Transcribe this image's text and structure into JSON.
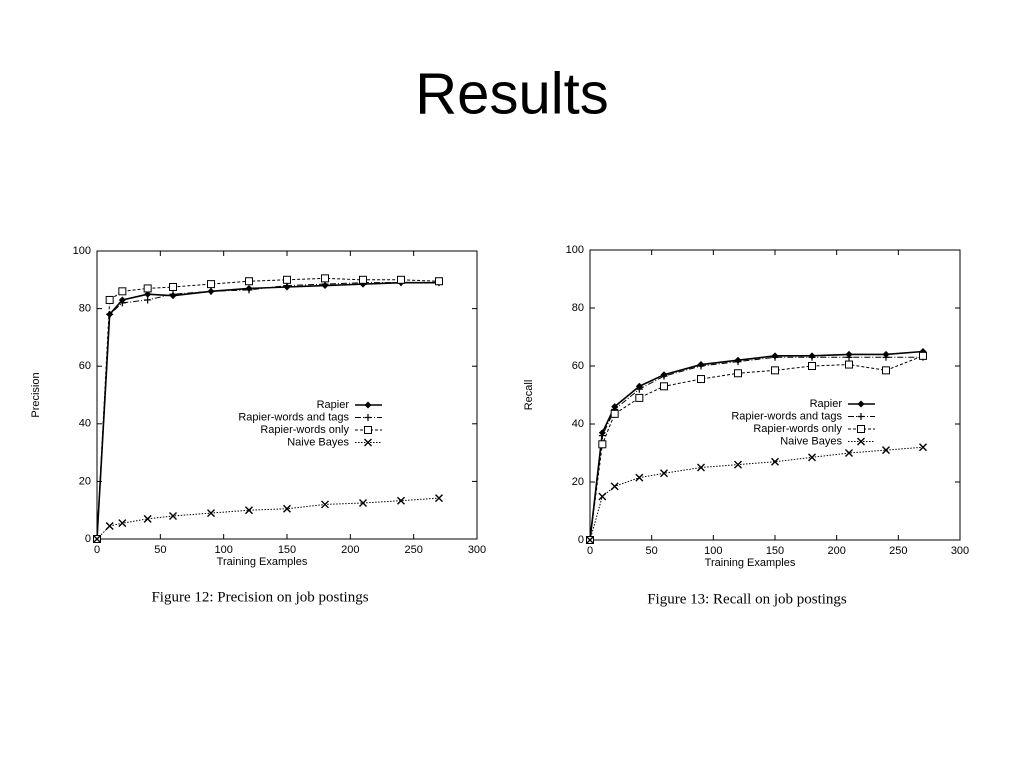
{
  "slide": {
    "title": "Results"
  },
  "chart_data": [
    {
      "type": "line",
      "caption": "Figure 12: Precision on job postings",
      "xlabel": "Training Examples",
      "ylabel": "Precision",
      "x": [
        0,
        10,
        20,
        40,
        60,
        90,
        120,
        150,
        180,
        210,
        240,
        270
      ],
      "xlim": [
        0,
        300
      ],
      "xticks": [
        0,
        50,
        100,
        150,
        200,
        250,
        300
      ],
      "ylim": [
        0,
        100
      ],
      "yticks": [
        0,
        20,
        40,
        60,
        80,
        100
      ],
      "legend": "right",
      "series": [
        {
          "name": "Rapier",
          "color": "#000000",
          "marker": "diamond",
          "values": [
            0,
            78,
            83,
            85,
            84.5,
            86,
            87,
            87.5,
            88,
            88.5,
            89,
            89
          ]
        },
        {
          "name": "Rapier-words and tags",
          "color": "#000000",
          "marker": "plus",
          "values": [
            0,
            78,
            82,
            83,
            85,
            86,
            86.5,
            88,
            88.5,
            89,
            89,
            89
          ]
        },
        {
          "name": "Rapier-words only",
          "color": "#000000",
          "marker": "square",
          "values": [
            0,
            83,
            86,
            87,
            87.5,
            88.5,
            89.5,
            90,
            90.5,
            90,
            90,
            89.5
          ]
        },
        {
          "name": "Naive Bayes",
          "color": "#000000",
          "marker": "cross",
          "values": [
            0,
            4.5,
            5.5,
            7,
            8,
            9,
            10,
            10.5,
            12,
            12.5,
            13.3,
            14.2
          ]
        }
      ]
    },
    {
      "type": "line",
      "caption": "Figure 13: Recall on job postings",
      "xlabel": "Training Examples",
      "ylabel": "Recall",
      "x": [
        0,
        10,
        20,
        40,
        60,
        90,
        120,
        150,
        180,
        210,
        240,
        270
      ],
      "xlim": [
        0,
        300
      ],
      "xticks": [
        0,
        50,
        100,
        150,
        200,
        250,
        300
      ],
      "ylim": [
        0,
        100
      ],
      "yticks": [
        0,
        20,
        40,
        60,
        80,
        100
      ],
      "legend": "right",
      "series": [
        {
          "name": "Rapier",
          "color": "#000000",
          "marker": "diamond",
          "values": [
            0,
            37,
            46,
            53,
            57,
            60.5,
            62,
            63.5,
            63.5,
            64,
            64,
            65
          ]
        },
        {
          "name": "Rapier-words and tags",
          "color": "#000000",
          "marker": "plus",
          "values": [
            0,
            36,
            45,
            52,
            56.5,
            60,
            61.5,
            63,
            63,
            63,
            63,
            63
          ]
        },
        {
          "name": "Rapier-words only",
          "color": "#000000",
          "marker": "square",
          "values": [
            0,
            33,
            43.5,
            49,
            53,
            55.5,
            57.5,
            58.5,
            60,
            60.5,
            58.5,
            63.5
          ]
        },
        {
          "name": "Naive Bayes",
          "color": "#000000",
          "marker": "cross",
          "values": [
            0,
            15,
            18.5,
            21.5,
            23,
            25,
            26,
            27,
            28.5,
            30,
            31,
            32
          ]
        }
      ]
    }
  ]
}
